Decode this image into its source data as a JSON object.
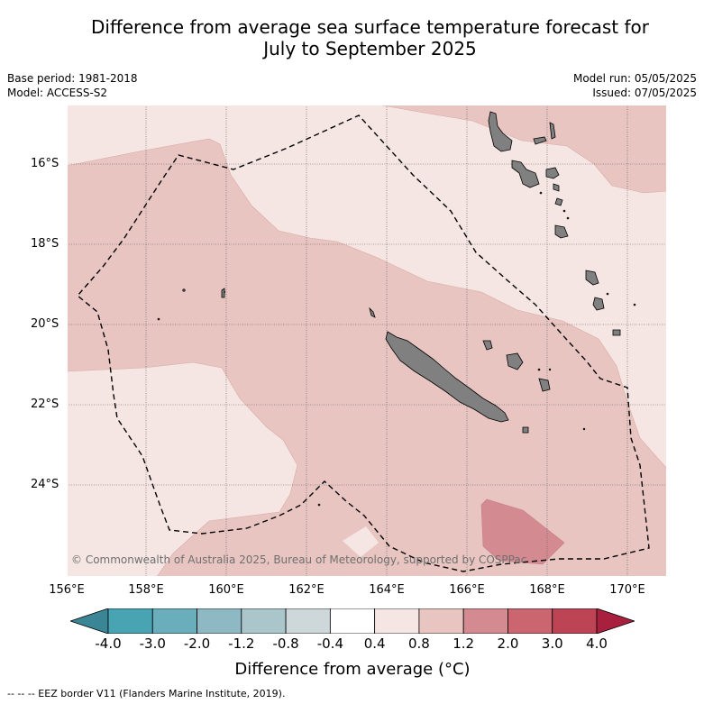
{
  "title": {
    "line1": "Difference from average sea surface temperature forecast for",
    "line2": "July to September 2025"
  },
  "meta": {
    "base_period": "Base period: 1981-2018",
    "model": "Model: ACCESS-S2",
    "model_run": "Model run: 05/05/2025",
    "issued": "Issued: 07/05/2025"
  },
  "map": {
    "lat_labels": [
      "16°S",
      "18°S",
      "20°S",
      "22°S",
      "24°S"
    ],
    "lon_labels": [
      "156°E",
      "158°E",
      "160°E",
      "162°E",
      "164°E",
      "166°E",
      "168°E",
      "170°E"
    ],
    "copyright": "© Commonwealth of Australia 2025, Bureau of Meteorology, supported by COSPPac",
    "colors": {
      "anomaly_0_4_to_0_8": "#f5e6e4",
      "anomaly_0_8_to_1_2": "#e8c5c1",
      "anomaly_1_2_to_2_0": "#d48a91",
      "anomaly_neg0_4_to_0_4": "#ffffff",
      "land": "#808080",
      "eez_border": "#000000"
    }
  },
  "colorbar": {
    "ticks": [
      "-4.0",
      "-3.0",
      "-2.0",
      "-1.2",
      "-0.8",
      "-0.4",
      "0.4",
      "0.8",
      "1.2",
      "2.0",
      "3.0",
      "4.0"
    ],
    "colors": [
      "#3a8596",
      "#48a3b2",
      "#6aaebc",
      "#8eb9c4",
      "#aac6cb",
      "#ced7d9",
      "#ffffff",
      "#f5e6e4",
      "#e8c5c1",
      "#d48a91",
      "#cb6570",
      "#bd4454",
      "#a8203d"
    ],
    "label": "Difference from average (°C)"
  },
  "footnote": "-- -- -- EEZ border V11 (Flanders Marine Institute, 2019)."
}
